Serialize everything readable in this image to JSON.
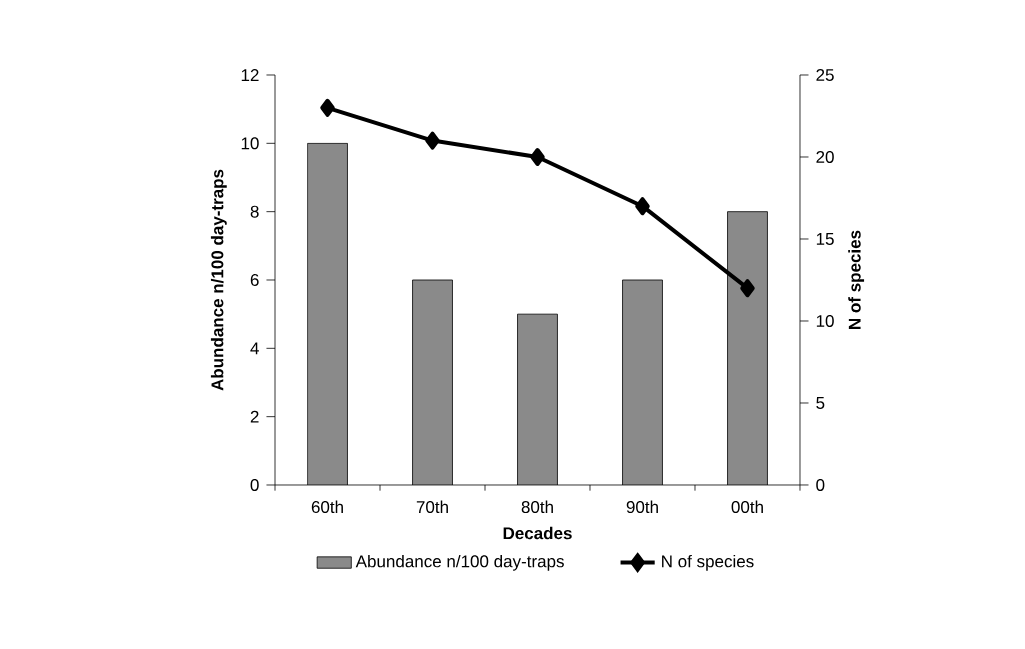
{
  "chart_data": {
    "type": "bar",
    "xlabel": "Decades",
    "ylabel": "Abundance n/100 day-traps",
    "y2label": "N of species",
    "categories": [
      "60th",
      "70th",
      "80th",
      "90th",
      "00th"
    ],
    "series": [
      {
        "name": "Abundance n/100 day-traps",
        "color": "#8a8a8a",
        "values": [
          10,
          6,
          5,
          6,
          8
        ]
      },
      {
        "name": "N of species",
        "color": "#000000",
        "type": "line",
        "axis": "y2",
        "values": [
          23,
          21,
          20,
          17,
          12
        ]
      }
    ],
    "ylim": [
      0,
      12
    ],
    "yticks": [
      0,
      2,
      4,
      6,
      8,
      10,
      12
    ],
    "y2lim": [
      0,
      25
    ],
    "y2ticks": [
      0,
      5,
      10,
      15,
      20,
      25
    ],
    "marker": "diamond",
    "legend": "bottom",
    "grid": false
  }
}
